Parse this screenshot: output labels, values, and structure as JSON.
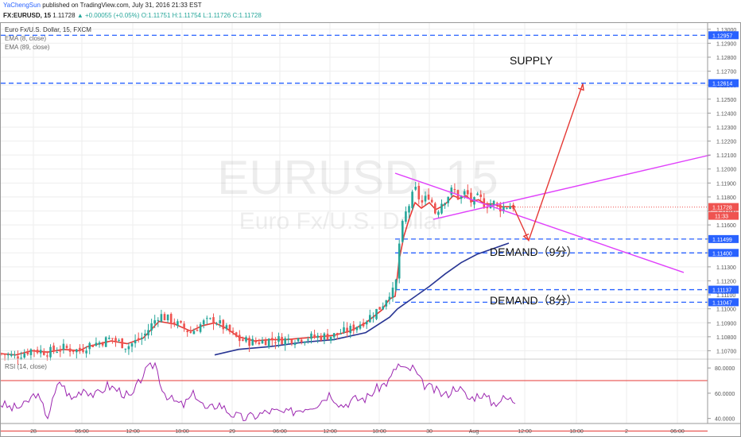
{
  "header": {
    "author": "YaChengSun",
    "published": "published on TradingView.com, July 31, 2016 21:33 EST",
    "symbol": "FX:EURUSD, 15",
    "last": "1.11728",
    "change": "▲ +0.00055 (+0.05%)",
    "ohlc": "O:1.11751 H:1.11754 L:1.11726 C:1.11728"
  },
  "legend": {
    "title": "Euro Fx/U.S. Dollar, 15, FXCM",
    "ema1": "EMA (8, close)",
    "ema2": "EMA (89, close)",
    "rsi": "RSI (14, close)"
  },
  "watermark": {
    "symbol": "EURUSD, 15",
    "name": "Euro Fx/U.S. Dollar"
  },
  "annotations": {
    "supply": "SUPPLY",
    "demand1": "DEMAND（9分）",
    "demand2": "DEMAND（8分）"
  },
  "colors": {
    "up_candle": "#26a69a",
    "down_candle": "#ef5350",
    "ema_fast": "#e53935",
    "ema_slow": "#283593",
    "level_line": "#2962ff",
    "triangle": "#e040fb",
    "projection": "#e53935",
    "rsi_line": "#9c27b0",
    "rsi_bounds": "#e53935",
    "price_label_bg": "#2962ff",
    "last_price_bg": "#ef5350"
  },
  "chart_data": [
    {
      "type": "candlestick",
      "title": "Euro Fx/U.S. Dollar, 15, FXCM",
      "ylim": [
        1.1064,
        1.1305
      ],
      "y_ticks": [
        "1.13000",
        "1.12900",
        "1.12800",
        "1.12700",
        "1.12600",
        "1.12500",
        "1.12400",
        "1.12300",
        "1.12200",
        "1.12100",
        "1.12000",
        "1.11900",
        "1.11800",
        "1.11700",
        "1.11600",
        "1.11500",
        "1.11400",
        "1.11300",
        "1.11200",
        "1.11100",
        "1.11000",
        "1.10900",
        "1.10800",
        "1.10700"
      ],
      "x_ticks": [
        "28",
        "06:00",
        "12:00",
        "18:00",
        "29",
        "06:00",
        "12:00",
        "18:00",
        "30",
        "Aug",
        "12:00",
        "18:00",
        "2",
        "06:00"
      ],
      "horizontal_levels": [
        {
          "value": 1.12957,
          "label": "1.12957"
        },
        {
          "value": 1.12614,
          "label": "1.12614"
        },
        {
          "value": 1.11499,
          "label": "1.11499"
        },
        {
          "value": 1.114,
          "label": "1.11400"
        },
        {
          "value": 1.11137,
          "label": "1.11137"
        },
        {
          "value": 1.11047,
          "label": "1.11047"
        }
      ],
      "last_price": {
        "value": 1.11728,
        "label": "1.11728",
        "countdown": "11:33"
      },
      "price_path_x": [
        0,
        20,
        40,
        60,
        80,
        100,
        110,
        125,
        140,
        160,
        180,
        200,
        220,
        240,
        255,
        270,
        285,
        300,
        320,
        340,
        360,
        380,
        400,
        420,
        440,
        460,
        480,
        490,
        497,
        502,
        508,
        515,
        522,
        530,
        540,
        548,
        555,
        562,
        570,
        578,
        586,
        594,
        602,
        610,
        620,
        630,
        640,
        648
      ],
      "price_path_y": [
        1.1068,
        1.1066,
        1.1071,
        1.1069,
        1.1072,
        1.107,
        1.1074,
        1.1076,
        1.1079,
        1.1073,
        1.108,
        1.1096,
        1.109,
        1.1083,
        1.109,
        1.1092,
        1.1085,
        1.1078,
        1.1076,
        1.1078,
        1.1078,
        1.1079,
        1.108,
        1.1081,
        1.1085,
        1.1092,
        1.1102,
        1.1112,
        1.1112,
        1.1146,
        1.1165,
        1.1175,
        1.1186,
        1.1175,
        1.1182,
        1.1168,
        1.1176,
        1.118,
        1.1186,
        1.1178,
        1.1184,
        1.1175,
        1.118,
        1.1174,
        1.1176,
        1.1172,
        1.1174,
        1.1173
      ],
      "ema_fast_y": [
        1.1068,
        1.1067,
        1.107,
        1.1069,
        1.1071,
        1.107,
        1.1073,
        1.1075,
        1.1077,
        1.1075,
        1.1079,
        1.1091,
        1.1089,
        1.1084,
        1.1088,
        1.109,
        1.1086,
        1.108,
        1.1077,
        1.1078,
        1.1078,
        1.1079,
        1.108,
        1.1081,
        1.1084,
        1.109,
        1.1099,
        1.1107,
        1.1109,
        1.1135,
        1.1152,
        1.1165,
        1.1176,
        1.1172,
        1.1176,
        1.1171,
        1.1173,
        1.1176,
        1.1181,
        1.1179,
        1.1181,
        1.1177,
        1.1178,
        1.1175,
        1.1175,
        1.1173,
        1.1173,
        1.1173
      ],
      "ema_slow_x": [
        270,
        300,
        340,
        380,
        420,
        460,
        490,
        500,
        520,
        540,
        560,
        580,
        600,
        620,
        640
      ],
      "ema_slow_y": [
        1.1067,
        1.1071,
        1.1073,
        1.1076,
        1.1078,
        1.1083,
        1.1094,
        1.11,
        1.1108,
        1.1116,
        1.1125,
        1.1133,
        1.1139,
        1.1143,
        1.1147
      ],
      "triangle": {
        "upper": [
          [
            497,
            1.1197
          ],
          [
            860,
            1.1126
          ]
        ],
        "lower": [
          [
            545,
            1.1164
          ],
          [
            893,
            1.121
          ]
        ]
      },
      "projection": [
        [
          645,
          1.1174
        ],
        [
          665,
          1.1149
        ],
        [
          733,
          1.1261
        ]
      ]
    },
    {
      "type": "line",
      "title": "RSI (14, close)",
      "ylim": [
        36,
        87
      ],
      "y_ticks": [
        "80.0000",
        "60.0000",
        "40.0000"
      ],
      "bounds": [
        70,
        30
      ],
      "x": [
        0,
        15,
        30,
        45,
        60,
        75,
        90,
        105,
        120,
        135,
        150,
        165,
        180,
        195,
        205,
        215,
        230,
        245,
        260,
        275,
        290,
        305,
        320,
        340,
        360,
        380,
        400,
        415,
        430,
        445,
        460,
        475,
        490,
        500,
        510,
        520,
        530,
        545,
        560,
        575,
        590,
        605,
        620,
        635,
        648
      ],
      "values": [
        52,
        48,
        50,
        60,
        42,
        70,
        55,
        64,
        58,
        66,
        62,
        56,
        75,
        84,
        62,
        55,
        50,
        60,
        46,
        52,
        44,
        40,
        42,
        46,
        44,
        48,
        52,
        60,
        50,
        55,
        56,
        64,
        70,
        83,
        78,
        80,
        68,
        63,
        58,
        66,
        55,
        60,
        52,
        56,
        54
      ]
    }
  ]
}
